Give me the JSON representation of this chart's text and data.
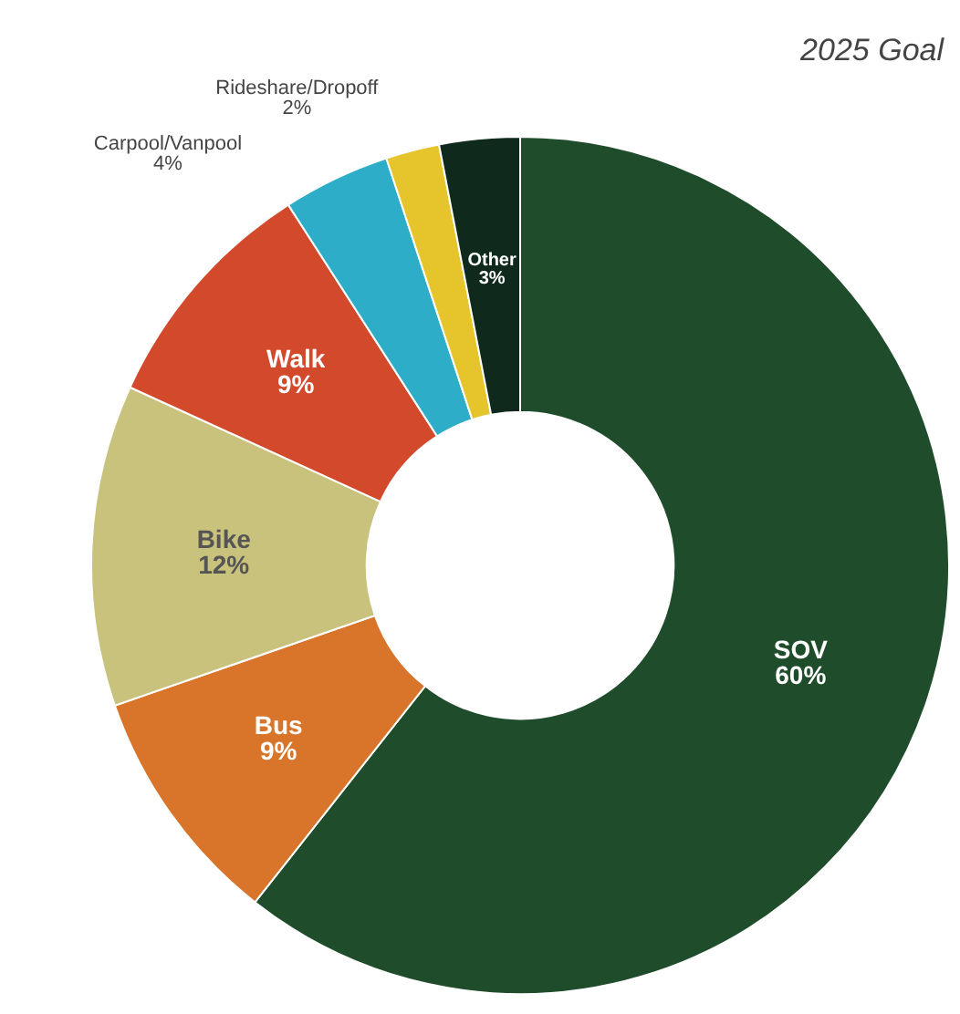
{
  "chart_data": {
    "type": "donut",
    "title": "2025 Goal",
    "categories": [
      "SOV",
      "Bus",
      "Bike",
      "Walk",
      "Carpool/Vanpool",
      "Rideshare/Dropoff",
      "Other"
    ],
    "values": [
      60,
      9,
      12,
      9,
      4,
      2,
      3
    ],
    "value_labels": [
      "60%",
      "9%",
      "12%",
      "9%",
      "4%",
      "2%",
      "3%"
    ],
    "colors": [
      "#1f4d2b",
      "#d9742b",
      "#c8c27c",
      "#d2492b",
      "#2eadc9",
      "#e6c42c",
      "#0f2a1c"
    ],
    "legend": false
  }
}
